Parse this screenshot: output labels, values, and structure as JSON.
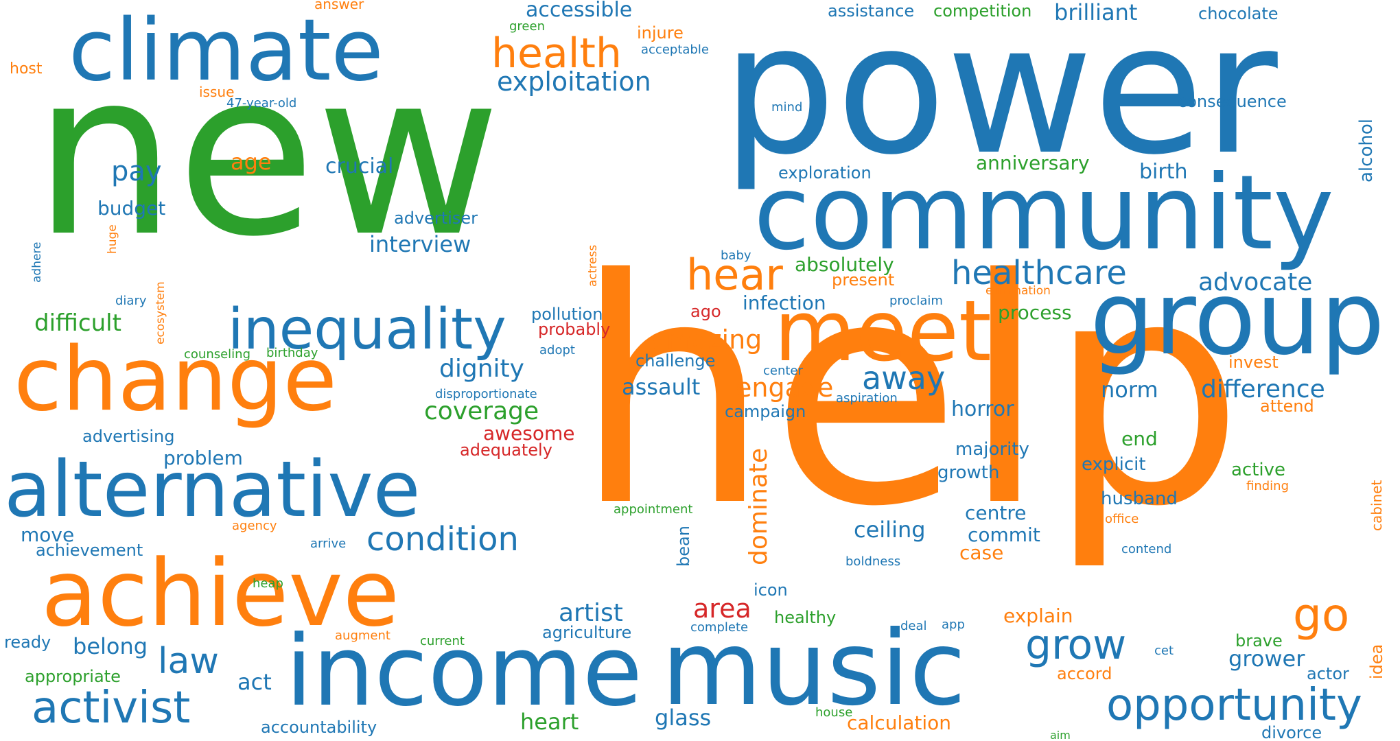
{
  "colors": {
    "blue": "#1f77b4",
    "orange": "#ff7f0e",
    "green": "#2ca02c",
    "red": "#d62728"
  },
  "words": [
    {
      "text": "new",
      "color": "green"
    },
    {
      "text": "power",
      "color": "blue"
    },
    {
      "text": "help",
      "color": "orange"
    },
    {
      "text": "community",
      "color": "blue"
    },
    {
      "text": "climate",
      "color": "blue"
    },
    {
      "text": "change",
      "color": "orange"
    },
    {
      "text": "achieve",
      "color": "orange"
    },
    {
      "text": "alternative",
      "color": "blue"
    },
    {
      "text": "income",
      "color": "blue"
    },
    {
      "text": "music",
      "color": "blue"
    },
    {
      "text": "group",
      "color": "blue"
    },
    {
      "text": "meet",
      "color": "orange"
    },
    {
      "text": "inequality",
      "color": "blue"
    },
    {
      "text": "health",
      "color": "orange"
    },
    {
      "text": "activist",
      "color": "blue"
    },
    {
      "text": "opportunity",
      "color": "blue"
    },
    {
      "text": "hear",
      "color": "orange"
    },
    {
      "text": "go",
      "color": "orange"
    },
    {
      "text": "grow",
      "color": "blue"
    },
    {
      "text": "healthcare",
      "color": "blue"
    },
    {
      "text": "condition",
      "color": "blue"
    },
    {
      "text": "law",
      "color": "blue"
    },
    {
      "text": "exploitation",
      "color": "blue"
    },
    {
      "text": "away",
      "color": "blue"
    },
    {
      "text": "engage",
      "color": "orange"
    },
    {
      "text": "amazing",
      "color": "orange"
    },
    {
      "text": "advocate",
      "color": "blue"
    },
    {
      "text": "difference",
      "color": "blue"
    },
    {
      "text": "artist",
      "color": "blue"
    },
    {
      "text": "dignity",
      "color": "blue"
    },
    {
      "text": "coverage",
      "color": "green"
    },
    {
      "text": "interview",
      "color": "blue"
    },
    {
      "text": "accessible",
      "color": "blue"
    },
    {
      "text": "brilliant",
      "color": "blue"
    },
    {
      "text": "pay",
      "color": "blue"
    },
    {
      "text": "difficult",
      "color": "green"
    },
    {
      "text": "dominate",
      "color": "orange"
    },
    {
      "text": "area",
      "color": "red"
    },
    {
      "text": "absolutely",
      "color": "green"
    },
    {
      "text": "crucial",
      "color": "blue"
    },
    {
      "text": "assault",
      "color": "blue"
    },
    {
      "text": "anniversary",
      "color": "green"
    },
    {
      "text": "birth",
      "color": "blue"
    },
    {
      "text": "age",
      "color": "orange"
    },
    {
      "text": "budget",
      "color": "blue"
    },
    {
      "text": "ceiling",
      "color": "blue"
    },
    {
      "text": "heart",
      "color": "green"
    },
    {
      "text": "glass",
      "color": "blue"
    },
    {
      "text": "calculation",
      "color": "orange"
    },
    {
      "text": "belong",
      "color": "blue"
    },
    {
      "text": "grower",
      "color": "blue"
    },
    {
      "text": "norm",
      "color": "blue"
    },
    {
      "text": "horror",
      "color": "blue"
    },
    {
      "text": "process",
      "color": "green"
    },
    {
      "text": "infection",
      "color": "blue"
    },
    {
      "text": "explain",
      "color": "orange"
    },
    {
      "text": "awesome",
      "color": "red"
    },
    {
      "text": "problem",
      "color": "blue"
    },
    {
      "text": "act",
      "color": "blue"
    },
    {
      "text": "move",
      "color": "blue"
    },
    {
      "text": "centre",
      "color": "blue"
    },
    {
      "text": "commit",
      "color": "blue"
    },
    {
      "text": "case",
      "color": "orange"
    },
    {
      "text": "majority",
      "color": "blue"
    },
    {
      "text": "growth",
      "color": "blue"
    },
    {
      "text": "end",
      "color": "green"
    },
    {
      "text": "explicit",
      "color": "blue"
    },
    {
      "text": "active",
      "color": "green"
    },
    {
      "text": "husband",
      "color": "blue"
    },
    {
      "text": "brave",
      "color": "green"
    },
    {
      "text": "actor",
      "color": "blue"
    },
    {
      "text": "divorce",
      "color": "blue"
    },
    {
      "text": "alcohol",
      "color": "blue"
    },
    {
      "text": "consequence",
      "color": "blue"
    },
    {
      "text": "chocolate",
      "color": "blue"
    },
    {
      "text": "exploration",
      "color": "blue"
    },
    {
      "text": "assistance",
      "color": "blue"
    },
    {
      "text": "competition",
      "color": "green"
    },
    {
      "text": "injure",
      "color": "orange"
    },
    {
      "text": "advertiser",
      "color": "blue"
    },
    {
      "text": "pollution",
      "color": "blue"
    },
    {
      "text": "probably",
      "color": "red"
    },
    {
      "text": "challenge",
      "color": "blue"
    },
    {
      "text": "campaign",
      "color": "blue"
    },
    {
      "text": "present",
      "color": "orange"
    },
    {
      "text": "ago",
      "color": "red"
    },
    {
      "text": "invest",
      "color": "orange"
    },
    {
      "text": "attend",
      "color": "orange"
    },
    {
      "text": "icon",
      "color": "blue"
    },
    {
      "text": "healthy",
      "color": "green"
    },
    {
      "text": "agriculture",
      "color": "blue"
    },
    {
      "text": "advertising",
      "color": "blue"
    },
    {
      "text": "achievement",
      "color": "blue"
    },
    {
      "text": "ready",
      "color": "blue"
    },
    {
      "text": "appropriate",
      "color": "green"
    },
    {
      "text": "accountability",
      "color": "blue"
    },
    {
      "text": "adequately",
      "color": "red"
    },
    {
      "text": "accord",
      "color": "orange"
    },
    {
      "text": "idea",
      "color": "orange"
    },
    {
      "text": "bean",
      "color": "blue"
    },
    {
      "text": "answer",
      "color": "orange"
    },
    {
      "text": "host",
      "color": "orange"
    },
    {
      "text": "issue",
      "color": "orange"
    },
    {
      "text": "green",
      "color": "green"
    },
    {
      "text": "acceptable",
      "color": "blue"
    },
    {
      "text": "47-year-old",
      "color": "blue"
    },
    {
      "text": "mind",
      "color": "blue"
    },
    {
      "text": "baby",
      "color": "blue"
    },
    {
      "text": "proclaim",
      "color": "blue"
    },
    {
      "text": "elimination",
      "color": "orange"
    },
    {
      "text": "diary",
      "color": "blue"
    },
    {
      "text": "counseling",
      "color": "green"
    },
    {
      "text": "birthday",
      "color": "green"
    },
    {
      "text": "adopt",
      "color": "blue"
    },
    {
      "text": "center",
      "color": "blue"
    },
    {
      "text": "aspiration",
      "color": "blue"
    },
    {
      "text": "disproportionate",
      "color": "blue"
    },
    {
      "text": "finding",
      "color": "orange"
    },
    {
      "text": "office",
      "color": "orange"
    },
    {
      "text": "appointment",
      "color": "green"
    },
    {
      "text": "agency",
      "color": "orange"
    },
    {
      "text": "arrive",
      "color": "blue"
    },
    {
      "text": "boldness",
      "color": "blue"
    },
    {
      "text": "contend",
      "color": "blue"
    },
    {
      "text": "heap",
      "color": "green"
    },
    {
      "text": "augment",
      "color": "orange"
    },
    {
      "text": "current",
      "color": "green"
    },
    {
      "text": "complete",
      "color": "blue"
    },
    {
      "text": "deal",
      "color": "blue"
    },
    {
      "text": "app",
      "color": "blue"
    },
    {
      "text": "cet",
      "color": "blue"
    },
    {
      "text": "house",
      "color": "green"
    },
    {
      "text": "aim",
      "color": "green"
    },
    {
      "text": "adhere",
      "color": "blue"
    },
    {
      "text": "huge",
      "color": "orange"
    },
    {
      "text": "ecosystem",
      "color": "orange"
    },
    {
      "text": "actress",
      "color": "orange"
    },
    {
      "text": "cabinet",
      "color": "orange"
    }
  ]
}
